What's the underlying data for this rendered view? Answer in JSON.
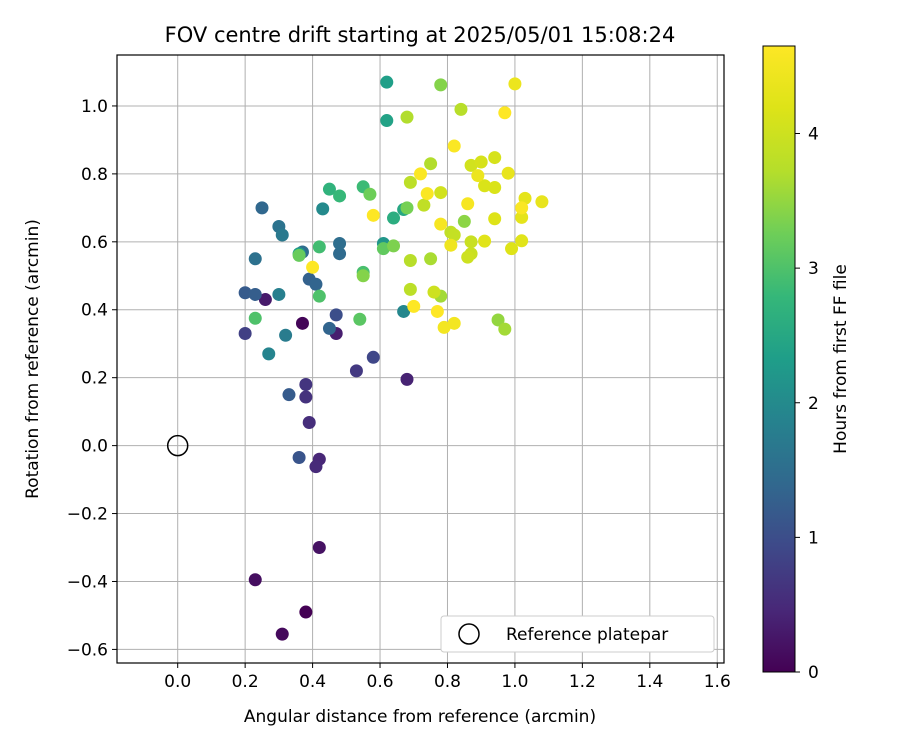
{
  "chart_data": {
    "type": "scatter",
    "title": "FOV centre drift starting at 2025/05/01 15:08:24",
    "xlabel": "Angular distance from reference (arcmin)",
    "ylabel": "Rotation from reference (arcmin)",
    "xlim": [
      -0.18,
      1.62
    ],
    "ylim": [
      -0.64,
      1.15
    ],
    "xticks": [
      0.0,
      0.2,
      0.4,
      0.6,
      0.8,
      1.0,
      1.2,
      1.4,
      1.6
    ],
    "xtick_labels": [
      "0.0",
      "0.2",
      "0.4",
      "0.6",
      "0.8",
      "1.0",
      "1.2",
      "1.4",
      "1.6"
    ],
    "yticks": [
      -0.6,
      -0.4,
      -0.2,
      0.0,
      0.2,
      0.4,
      0.6,
      0.8,
      1.0
    ],
    "ytick_labels": [
      "−0.6",
      "−0.4",
      "−0.2",
      "0.0",
      "0.2",
      "0.4",
      "0.6",
      "0.8",
      "1.0"
    ],
    "grid": true,
    "legend": {
      "placement": "lower-right",
      "entries": [
        "Reference platepar"
      ]
    },
    "reference_point": {
      "x": 0.0,
      "y": 0.0
    },
    "colorbar": {
      "label": "Hours from first FF file",
      "colormap": "viridis",
      "range": [
        0,
        4.65
      ],
      "ticks": [
        0,
        1,
        2,
        3,
        4
      ],
      "tick_labels": [
        "0",
        "1",
        "2",
        "3",
        "4"
      ]
    },
    "points": [
      {
        "x": 0.38,
        "y": -0.49,
        "c": 0.0
      },
      {
        "x": 0.31,
        "y": -0.555,
        "c": 0.1
      },
      {
        "x": 0.23,
        "y": -0.395,
        "c": 0.15
      },
      {
        "x": 0.42,
        "y": -0.3,
        "c": 0.2
      },
      {
        "x": 0.37,
        "y": 0.36,
        "c": 0.05
      },
      {
        "x": 0.26,
        "y": 0.43,
        "c": 0.3
      },
      {
        "x": 0.47,
        "y": 0.33,
        "c": 0.35
      },
      {
        "x": 0.68,
        "y": 0.195,
        "c": 0.4
      },
      {
        "x": 0.42,
        "y": -0.04,
        "c": 0.45
      },
      {
        "x": 0.41,
        "y": -0.062,
        "c": 0.5
      },
      {
        "x": 0.39,
        "y": 0.068,
        "c": 0.55
      },
      {
        "x": 0.38,
        "y": 0.143,
        "c": 0.6
      },
      {
        "x": 0.38,
        "y": 0.18,
        "c": 0.65
      },
      {
        "x": 0.53,
        "y": 0.22,
        "c": 0.7
      },
      {
        "x": 0.2,
        "y": 0.33,
        "c": 0.8
      },
      {
        "x": 0.58,
        "y": 0.26,
        "c": 0.9
      },
      {
        "x": 0.47,
        "y": 0.385,
        "c": 1.0
      },
      {
        "x": 0.36,
        "y": -0.035,
        "c": 1.1
      },
      {
        "x": 0.33,
        "y": 0.15,
        "c": 1.2
      },
      {
        "x": 0.2,
        "y": 0.45,
        "c": 1.2
      },
      {
        "x": 0.23,
        "y": 0.445,
        "c": 1.25
      },
      {
        "x": 0.39,
        "y": 0.49,
        "c": 1.3
      },
      {
        "x": 0.45,
        "y": 0.345,
        "c": 1.35
      },
      {
        "x": 0.41,
        "y": 0.475,
        "c": 1.35
      },
      {
        "x": 0.25,
        "y": 0.7,
        "c": 1.4
      },
      {
        "x": 0.48,
        "y": 0.565,
        "c": 1.45
      },
      {
        "x": 0.37,
        "y": 0.57,
        "c": 1.5
      },
      {
        "x": 0.48,
        "y": 0.595,
        "c": 1.5
      },
      {
        "x": 0.23,
        "y": 0.55,
        "c": 1.55
      },
      {
        "x": 0.3,
        "y": 0.645,
        "c": 1.6
      },
      {
        "x": 0.31,
        "y": 0.62,
        "c": 1.7
      },
      {
        "x": 0.32,
        "y": 0.325,
        "c": 1.75
      },
      {
        "x": 0.3,
        "y": 0.445,
        "c": 1.8
      },
      {
        "x": 0.27,
        "y": 0.27,
        "c": 1.9
      },
      {
        "x": 0.67,
        "y": 0.395,
        "c": 1.95
      },
      {
        "x": 0.43,
        "y": 0.697,
        "c": 2.0
      },
      {
        "x": 0.61,
        "y": 0.595,
        "c": 2.2
      },
      {
        "x": 0.36,
        "y": 0.565,
        "c": 2.3
      },
      {
        "x": 0.62,
        "y": 1.07,
        "c": 2.35
      },
      {
        "x": 0.62,
        "y": 0.957,
        "c": 2.4
      },
      {
        "x": 0.67,
        "y": 0.695,
        "c": 2.5
      },
      {
        "x": 0.64,
        "y": 0.67,
        "c": 2.6
      },
      {
        "x": 0.45,
        "y": 0.755,
        "c": 2.7
      },
      {
        "x": 0.48,
        "y": 0.735,
        "c": 2.8
      },
      {
        "x": 0.55,
        "y": 0.762,
        "c": 2.85
      },
      {
        "x": 0.42,
        "y": 0.585,
        "c": 2.9
      },
      {
        "x": 0.55,
        "y": 0.51,
        "c": 2.95
      },
      {
        "x": 0.42,
        "y": 0.44,
        "c": 3.0
      },
      {
        "x": 0.23,
        "y": 0.375,
        "c": 3.0
      },
      {
        "x": 0.54,
        "y": 0.372,
        "c": 3.1
      },
      {
        "x": 0.61,
        "y": 0.58,
        "c": 3.15
      },
      {
        "x": 0.36,
        "y": 0.56,
        "c": 3.2
      },
      {
        "x": 0.57,
        "y": 0.74,
        "c": 3.25
      },
      {
        "x": 0.68,
        "y": 0.7,
        "c": 3.3
      },
      {
        "x": 0.64,
        "y": 0.588,
        "c": 3.35
      },
      {
        "x": 0.55,
        "y": 0.5,
        "c": 3.4
      },
      {
        "x": 0.78,
        "y": 1.062,
        "c": 3.4
      },
      {
        "x": 0.85,
        "y": 0.66,
        "c": 3.45
      },
      {
        "x": 0.95,
        "y": 0.37,
        "c": 3.5
      },
      {
        "x": 0.97,
        "y": 0.343,
        "c": 3.6
      },
      {
        "x": 0.78,
        "y": 0.44,
        "c": 3.6
      },
      {
        "x": 0.75,
        "y": 0.55,
        "c": 3.65
      },
      {
        "x": 0.75,
        "y": 0.83,
        "c": 3.7
      },
      {
        "x": 0.68,
        "y": 0.967,
        "c": 3.7
      },
      {
        "x": 0.84,
        "y": 0.99,
        "c": 3.75
      },
      {
        "x": 0.69,
        "y": 0.545,
        "c": 3.75
      },
      {
        "x": 0.69,
        "y": 0.46,
        "c": 3.8
      },
      {
        "x": 0.69,
        "y": 0.775,
        "c": 3.8
      },
      {
        "x": 0.73,
        "y": 0.708,
        "c": 3.85
      },
      {
        "x": 0.81,
        "y": 0.628,
        "c": 3.85
      },
      {
        "x": 0.82,
        "y": 0.62,
        "c": 3.9
      },
      {
        "x": 0.87,
        "y": 0.6,
        "c": 3.95
      },
      {
        "x": 0.87,
        "y": 0.565,
        "c": 3.95
      },
      {
        "x": 0.86,
        "y": 0.555,
        "c": 4.0
      },
      {
        "x": 0.76,
        "y": 0.452,
        "c": 4.0
      },
      {
        "x": 0.78,
        "y": 0.745,
        "c": 4.05
      },
      {
        "x": 0.87,
        "y": 0.825,
        "c": 4.05
      },
      {
        "x": 0.9,
        "y": 0.835,
        "c": 4.1
      },
      {
        "x": 0.94,
        "y": 0.848,
        "c": 4.1
      },
      {
        "x": 0.91,
        "y": 0.765,
        "c": 4.15
      },
      {
        "x": 0.94,
        "y": 0.76,
        "c": 4.15
      },
      {
        "x": 0.94,
        "y": 0.668,
        "c": 4.2
      },
      {
        "x": 0.99,
        "y": 0.58,
        "c": 4.2
      },
      {
        "x": 0.91,
        "y": 0.602,
        "c": 4.25
      },
      {
        "x": 1.02,
        "y": 0.603,
        "c": 4.25
      },
      {
        "x": 1.02,
        "y": 0.672,
        "c": 4.3
      },
      {
        "x": 1.03,
        "y": 0.728,
        "c": 4.3
      },
      {
        "x": 1.08,
        "y": 0.718,
        "c": 4.35
      },
      {
        "x": 0.98,
        "y": 0.802,
        "c": 4.35
      },
      {
        "x": 0.89,
        "y": 0.795,
        "c": 4.4
      },
      {
        "x": 1.0,
        "y": 1.065,
        "c": 4.4
      },
      {
        "x": 0.81,
        "y": 0.59,
        "c": 4.45
      },
      {
        "x": 0.79,
        "y": 0.348,
        "c": 4.5
      },
      {
        "x": 0.82,
        "y": 0.36,
        "c": 4.5
      },
      {
        "x": 0.78,
        "y": 0.652,
        "c": 4.55
      },
      {
        "x": 0.86,
        "y": 0.712,
        "c": 4.55
      },
      {
        "x": 0.74,
        "y": 0.742,
        "c": 4.6
      },
      {
        "x": 0.72,
        "y": 0.8,
        "c": 4.6
      },
      {
        "x": 0.82,
        "y": 0.882,
        "c": 4.6
      },
      {
        "x": 0.97,
        "y": 0.98,
        "c": 4.65
      },
      {
        "x": 0.58,
        "y": 0.678,
        "c": 4.65
      },
      {
        "x": 0.4,
        "y": 0.525,
        "c": 4.7
      },
      {
        "x": 0.7,
        "y": 0.41,
        "c": 4.7
      },
      {
        "x": 0.77,
        "y": 0.395,
        "c": 4.65
      },
      {
        "x": 1.02,
        "y": 0.7,
        "c": 4.6
      }
    ]
  }
}
